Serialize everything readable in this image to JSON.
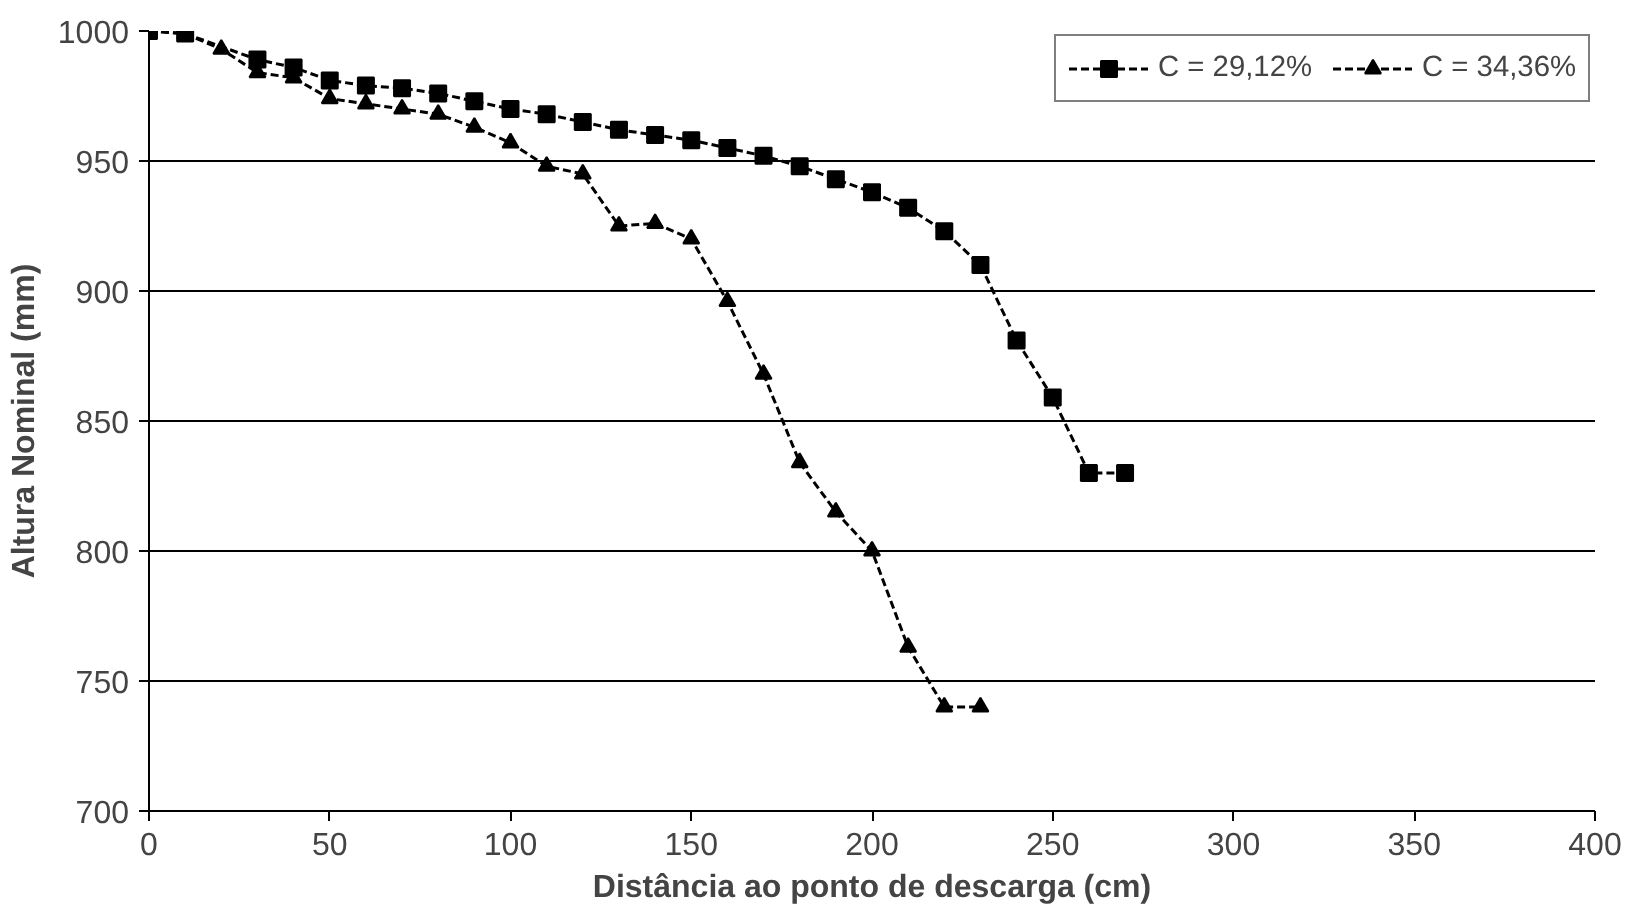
{
  "chart_data": {
    "type": "line",
    "xlabel": "Distância ao ponto de descarga (cm)",
    "ylabel": "Altura Nominal (mm)",
    "xlim": [
      0,
      400
    ],
    "xticks": [
      0,
      50,
      100,
      150,
      200,
      250,
      300,
      350,
      400
    ],
    "ylim": [
      700,
      1000
    ],
    "yticks": [
      700,
      750,
      800,
      850,
      900,
      950,
      1000
    ],
    "grid": "y",
    "legend": "top right",
    "line_style": "dashed",
    "series": [
      {
        "name": "C = 29,12%",
        "color": "#000000",
        "marker": "square",
        "x": [
          0,
          10,
          30,
          40,
          50,
          60,
          70,
          80,
          90,
          100,
          110,
          120,
          130,
          140,
          150,
          160,
          170,
          180,
          190,
          200,
          210,
          220,
          230,
          240,
          250,
          260,
          270
        ],
        "values": [
          1000,
          999,
          989,
          986,
          981,
          979,
          978,
          976,
          973,
          970,
          968,
          965,
          962,
          960,
          958,
          955,
          952,
          948,
          943,
          938,
          932,
          923,
          910,
          881,
          859,
          830,
          830
        ]
      },
      {
        "name": "C = 34,36%",
        "color": "#000000",
        "marker": "triangle",
        "x": [
          0,
          10,
          20,
          30,
          40,
          50,
          60,
          70,
          80,
          90,
          100,
          110,
          120,
          130,
          140,
          150,
          160,
          170,
          180,
          190,
          200,
          210,
          220,
          230
        ],
        "values": [
          1000,
          999,
          993,
          984,
          982,
          974,
          972,
          970,
          968,
          963,
          957,
          948,
          945,
          925,
          926,
          920,
          896,
          868,
          834,
          815,
          800,
          763,
          740,
          740
        ]
      }
    ]
  }
}
